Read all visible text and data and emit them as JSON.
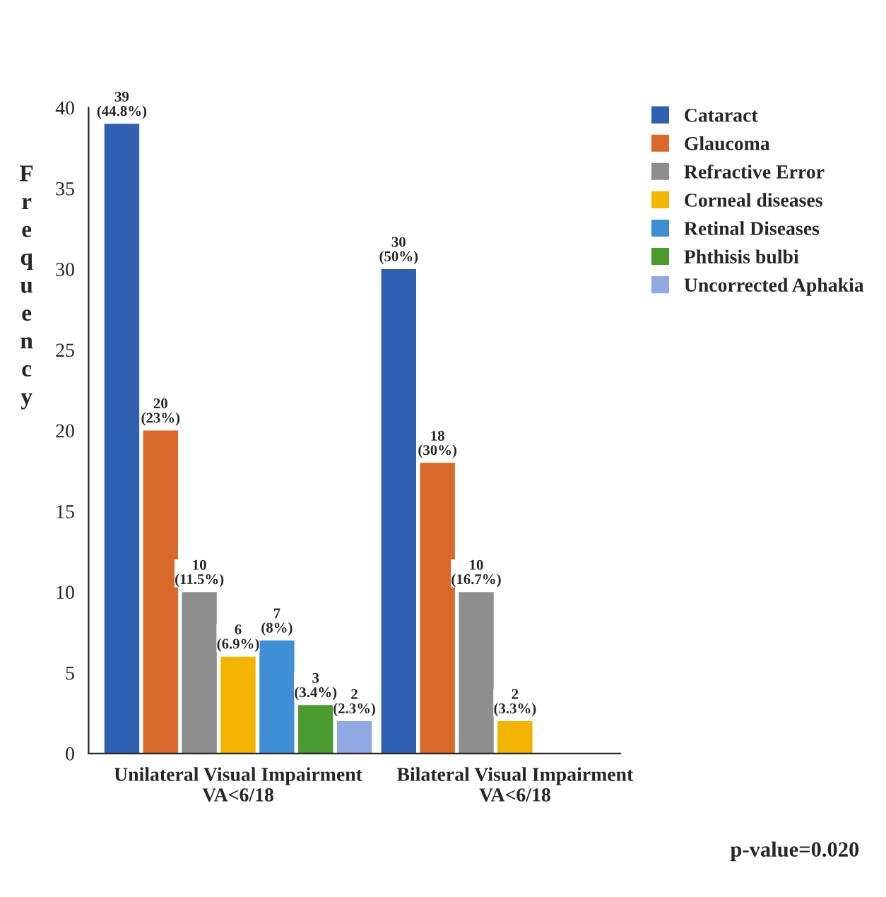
{
  "chart_data": {
    "type": "bar",
    "ylabel": "Frequency",
    "categories": [
      "Unilateral Visual Impairment\nVA<6/18",
      "Bilateral Visual Impairment\nVA<6/18"
    ],
    "series": [
      {
        "name": "Cataract",
        "color": "#2f5fb0",
        "values": [
          39,
          30
        ],
        "value_labels": [
          "39\n(44.8%)",
          "30\n(50%)"
        ]
      },
      {
        "name": "Glaucoma",
        "color": "#d9692a",
        "values": [
          20,
          18
        ],
        "value_labels": [
          "20\n(23%)",
          "18\n(30%)"
        ]
      },
      {
        "name": "Refractive Error",
        "color": "#8e8e8e",
        "values": [
          10,
          10
        ],
        "value_labels": [
          "10\n(11.5%)",
          "10\n(16.7%)"
        ]
      },
      {
        "name": "Corneal diseases",
        "color": "#f2b400",
        "values": [
          6,
          2
        ],
        "value_labels": [
          "6\n(6.9%)",
          "2\n(3.3%)"
        ]
      },
      {
        "name": "Retinal Diseases",
        "color": "#3f8fd4",
        "values": [
          7,
          null
        ],
        "value_labels": [
          "7\n(8%)",
          null
        ]
      },
      {
        "name": "Phthisis bulbi",
        "color": "#4a9a30",
        "values": [
          3,
          null
        ],
        "value_labels": [
          "3\n(3.4%)",
          null
        ]
      },
      {
        "name": "Uncorrected Aphakia",
        "color": "#91a9e2",
        "values": [
          2,
          null
        ],
        "value_labels": [
          "2\n(2.3%)",
          null
        ]
      }
    ],
    "ylim": [
      0,
      40
    ],
    "yticks": [
      0,
      5,
      10,
      15,
      20,
      25,
      30,
      35,
      40
    ],
    "grid": false,
    "legend": "top right",
    "annotations": [
      "p-value=0.020"
    ]
  }
}
